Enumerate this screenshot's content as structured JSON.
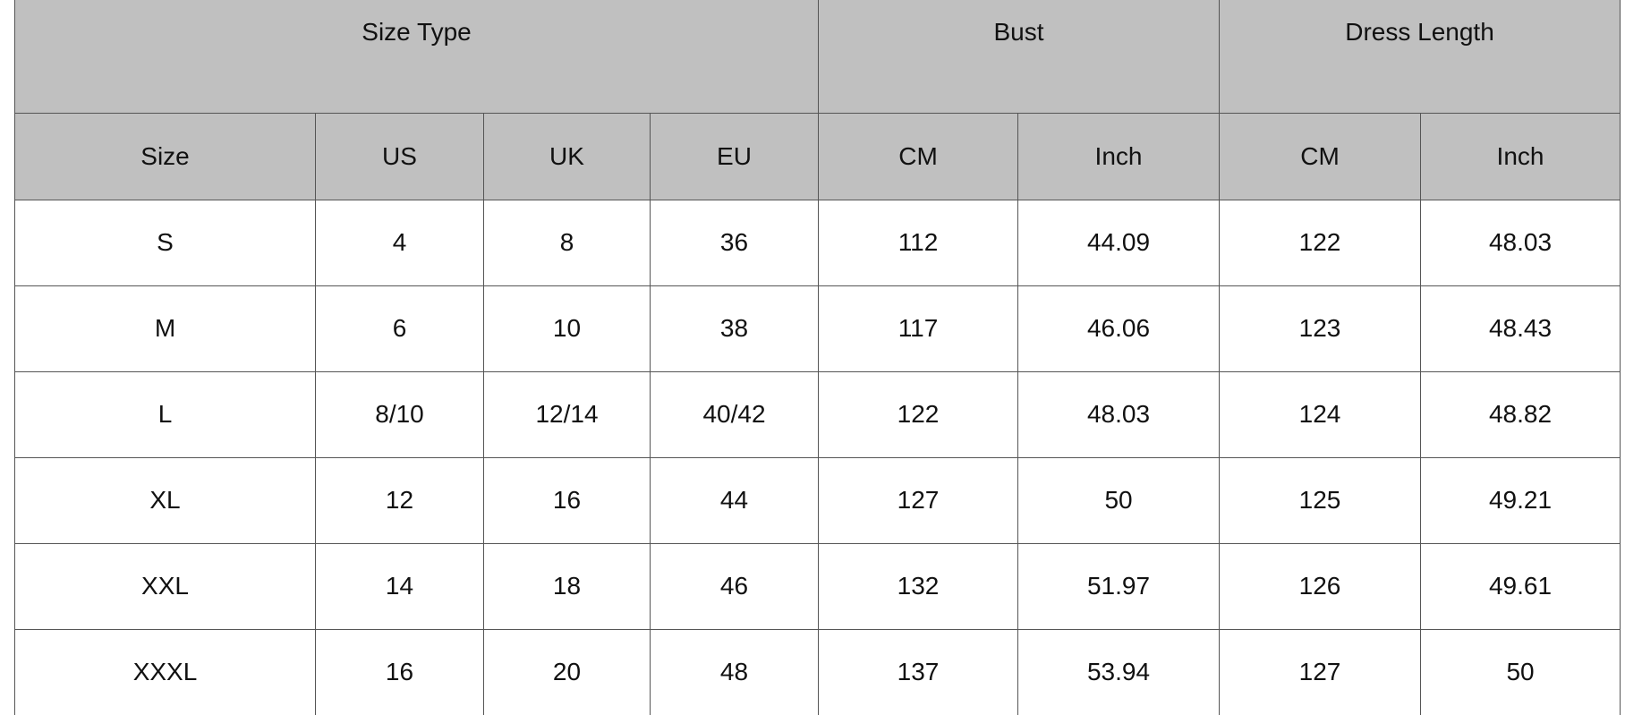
{
  "group_headers": [
    "Size Type",
    "Bust",
    "Dress Length"
  ],
  "sub_headers": [
    "Size",
    "US",
    "UK",
    "EU",
    "CM",
    "Inch",
    "CM",
    "Inch"
  ],
  "rows": [
    [
      "S",
      "4",
      "8",
      "36",
      "112",
      "44.09",
      "122",
      "48.03"
    ],
    [
      "M",
      "6",
      "10",
      "38",
      "117",
      "46.06",
      "123",
      "48.43"
    ],
    [
      "L",
      "8/10",
      "12/14",
      "40/42",
      "122",
      "48.03",
      "124",
      "48.82"
    ],
    [
      "XL",
      "12",
      "16",
      "44",
      "127",
      "50",
      "125",
      "49.21"
    ],
    [
      "XXL",
      "14",
      "18",
      "46",
      "132",
      "51.97",
      "126",
      "49.61"
    ],
    [
      "XXXL",
      "16",
      "20",
      "48",
      "137",
      "53.94",
      "127",
      "50"
    ]
  ],
  "colors": {
    "header_bg": "#c0c0c0",
    "border": "#555555"
  }
}
